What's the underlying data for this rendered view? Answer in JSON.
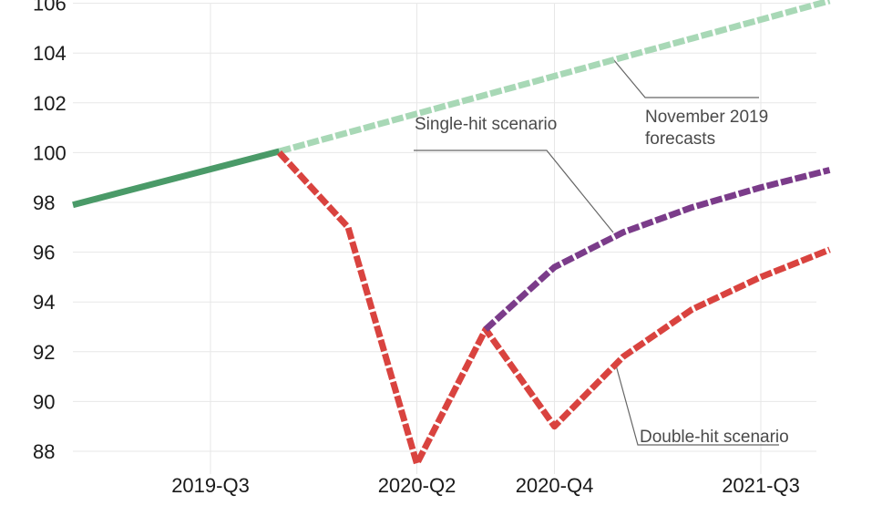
{
  "chart_data": {
    "type": "line",
    "categories": [
      "2019-Q1",
      "2019-Q2",
      "2019-Q3",
      "2019-Q4",
      "2020-Q1",
      "2020-Q2",
      "2020-Q3",
      "2020-Q4",
      "2021-Q1",
      "2021-Q2",
      "2021-Q3",
      "2021-Q4"
    ],
    "y_ticks": [
      88,
      90,
      92,
      94,
      96,
      98,
      100,
      102,
      104,
      106
    ],
    "x_ticks": [
      "2019-Q3",
      "2020-Q2",
      "2020-Q4",
      "2021-Q3"
    ],
    "ylim": [
      87.2,
      106.1
    ],
    "grid": true,
    "series": [
      {
        "key": "history",
        "color": "#4a9a68",
        "dashed": false,
        "x": [
          "2019-Q1",
          "2019-Q4"
        ],
        "y": [
          97.9,
          100.05
        ]
      },
      {
        "key": "forecast",
        "color": "#a8d8b6",
        "dashed": true,
        "x": [
          "2019-Q4",
          "2021-Q4"
        ],
        "y": [
          100.05,
          106.1
        ]
      },
      {
        "key": "double",
        "color": "#d9433f",
        "dashed": true,
        "x": [
          "2019-Q4",
          "2020-Q1",
          "2020-Q2",
          "2020-Q3",
          "2020-Q4",
          "2021-Q1",
          "2021-Q2",
          "2021-Q3",
          "2021-Q4"
        ],
        "y": [
          100.0,
          97.0,
          87.5,
          92.9,
          89.0,
          91.8,
          93.7,
          95.0,
          96.1
        ]
      },
      {
        "key": "single",
        "color": "#7b3c8a",
        "dashed": true,
        "x": [
          "2020-Q3",
          "2020-Q4",
          "2021-Q1",
          "2021-Q2",
          "2021-Q3",
          "2021-Q4"
        ],
        "y": [
          92.9,
          95.4,
          96.8,
          97.8,
          98.6,
          99.3
        ]
      }
    ],
    "annotations": [
      {
        "key": "forecast",
        "lines": [
          "November 2019",
          "forecasts"
        ]
      },
      {
        "key": "single",
        "lines": [
          "Single-hit scenario"
        ]
      },
      {
        "key": "double",
        "lines": [
          "Double-hit scenario"
        ]
      }
    ]
  }
}
